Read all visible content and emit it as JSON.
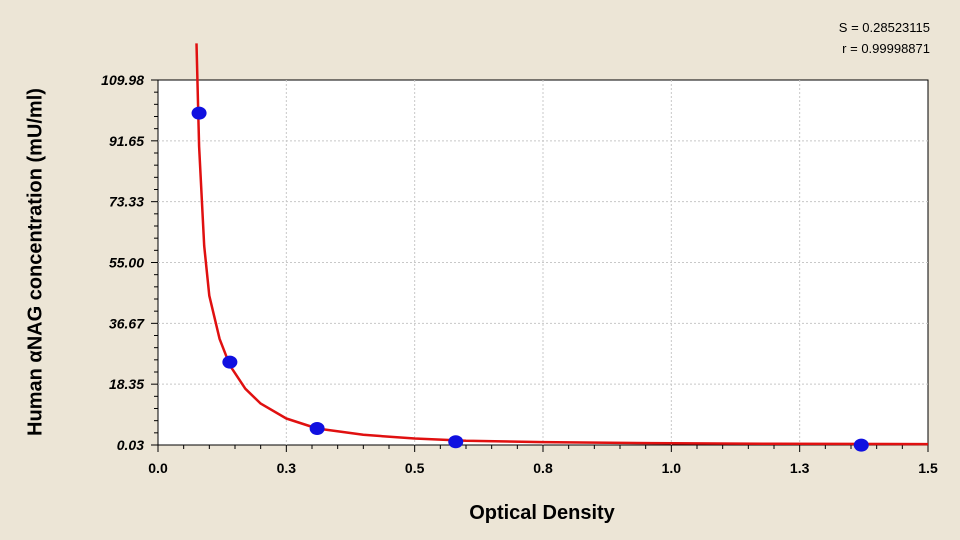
{
  "stats": {
    "s_text": "S = 0.28523115",
    "r_text": "r = 0.99998871"
  },
  "chart_data": {
    "type": "scatter",
    "title": "",
    "xlabel": "Optical Density",
    "ylabel": "Human αNAG concentration (mU/ml)",
    "xlim": [
      0.0,
      1.5
    ],
    "ylim": [
      0.03,
      109.98
    ],
    "x_ticks": [
      "0.0",
      "0.3",
      "0.5",
      "0.8",
      "1.0",
      "1.3",
      "1.5"
    ],
    "y_ticks": [
      "0.03",
      "18.35",
      "36.67",
      "55.00",
      "73.33",
      "91.65",
      "109.98"
    ],
    "grid": true,
    "series": [
      {
        "type": "scatter",
        "color": "#1010e0",
        "x": [
          0.08,
          0.14,
          0.31,
          0.58,
          1.37
        ],
        "y": [
          100.0,
          25.0,
          5.0,
          1.0,
          0.0
        ]
      },
      {
        "type": "line",
        "color": "#e01010",
        "x": [
          0.075,
          0.08,
          0.09,
          0.1,
          0.12,
          0.14,
          0.17,
          0.2,
          0.25,
          0.31,
          0.4,
          0.5,
          0.6,
          0.75,
          0.96,
          1.2,
          1.5
        ],
        "y": [
          121.0,
          90.0,
          60.0,
          45.0,
          32.0,
          24.0,
          17.0,
          12.5,
          8.0,
          5.0,
          3.1,
          2.0,
          1.3,
          0.9,
          0.6,
          0.4,
          0.3
        ]
      }
    ]
  }
}
